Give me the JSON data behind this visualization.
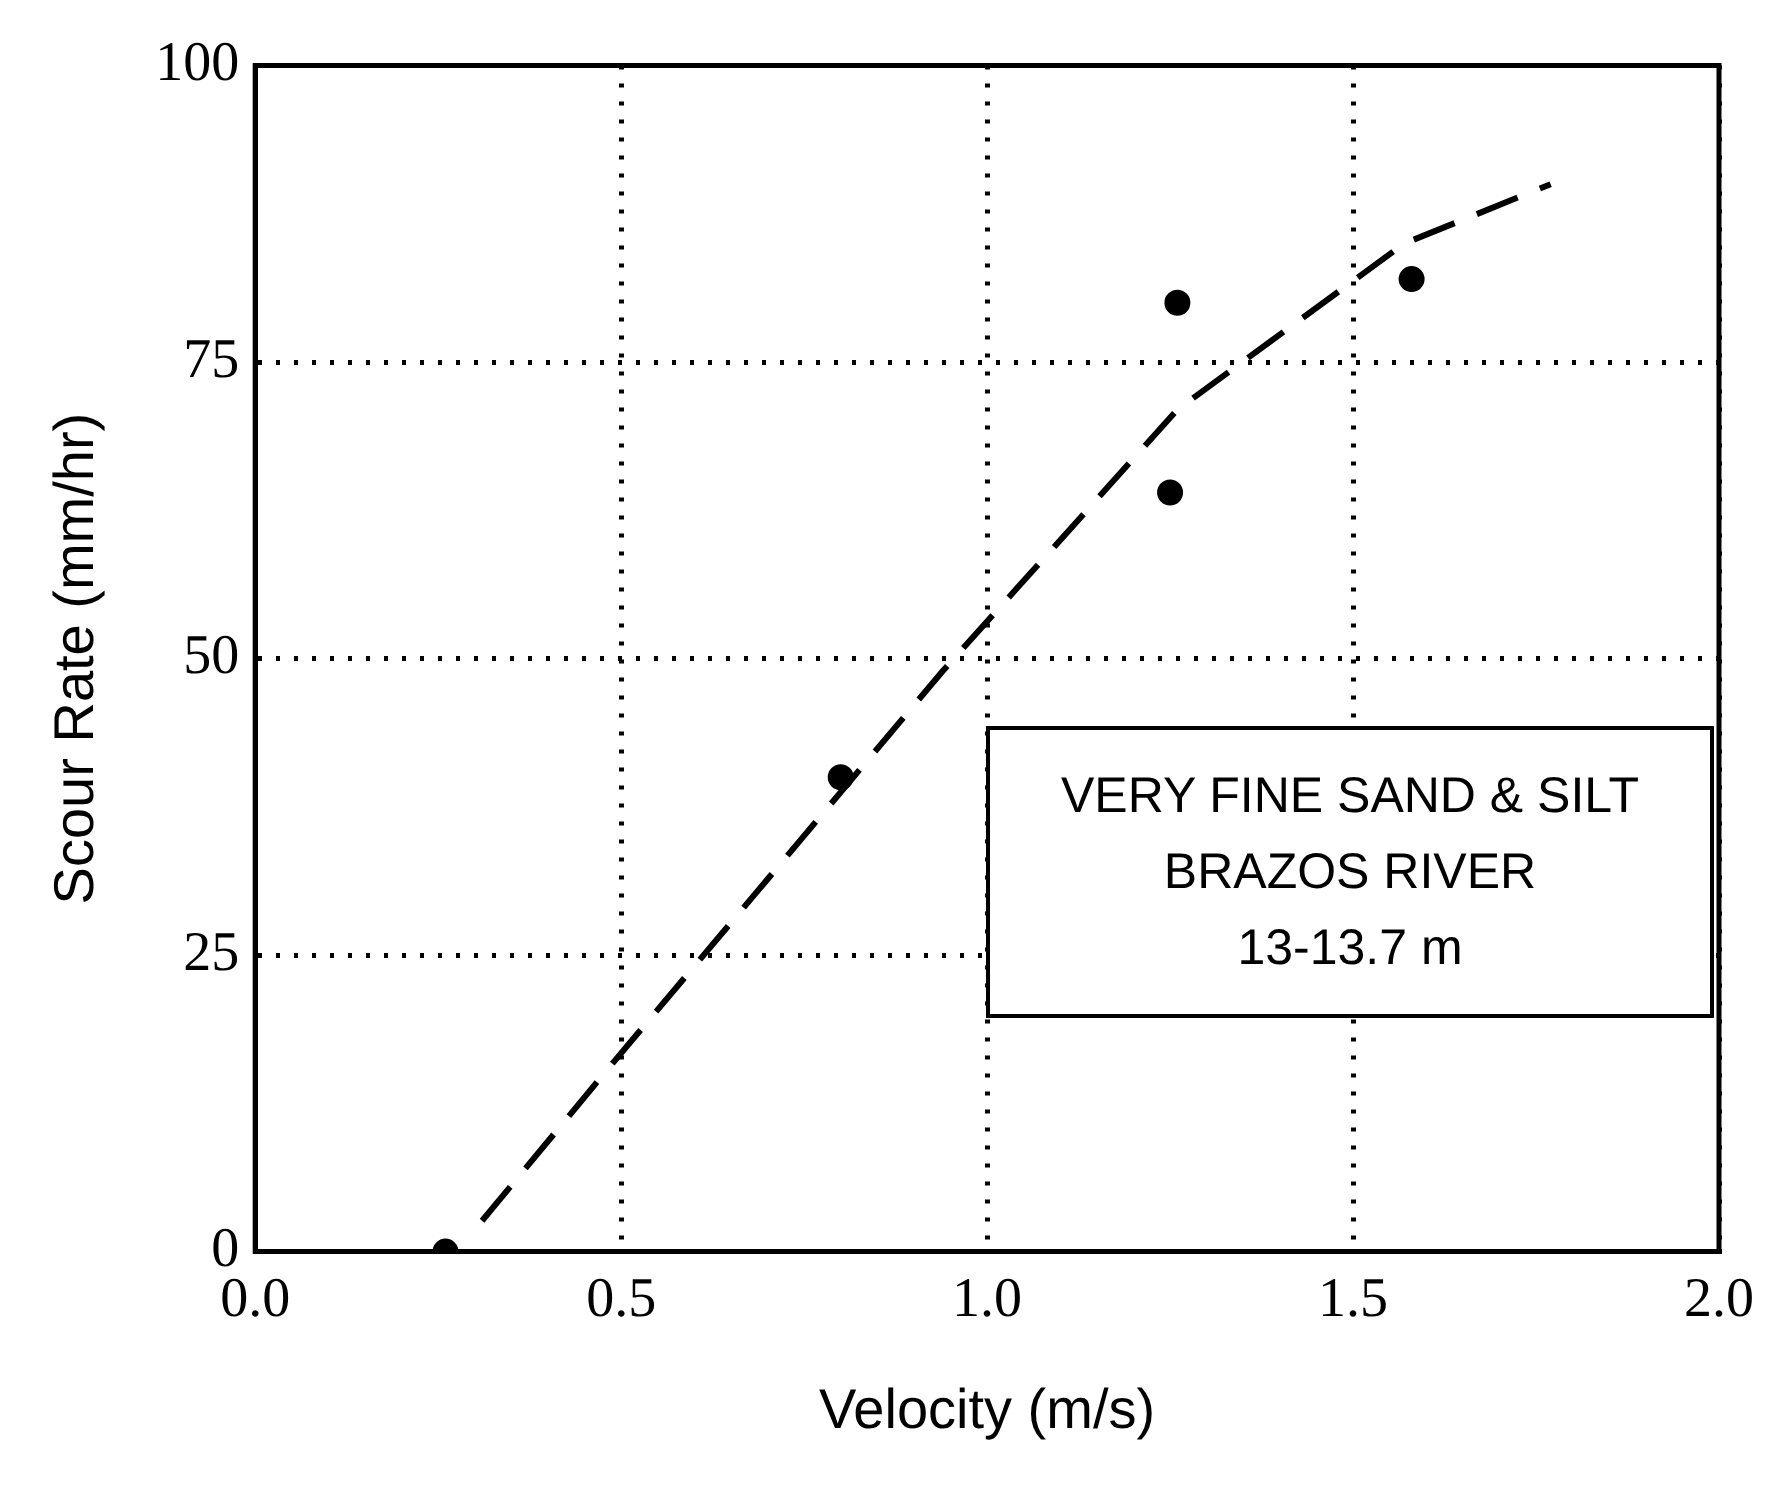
{
  "chart_data": {
    "type": "scatter",
    "xlabel": "Velocity (m/s)",
    "ylabel": "Scour Rate (mm/hr)",
    "annotations": [
      "VERY FINE SAND & SILT",
      "BRAZOS RIVER",
      "13-13.7 m"
    ],
    "xlim": [
      0,
      2
    ],
    "xticks": [
      {
        "value": 0,
        "label": "0.0"
      },
      {
        "value": 0.5,
        "label": "0.5"
      },
      {
        "value": 1,
        "label": "1.0"
      },
      {
        "value": 1.5,
        "label": "1.5"
      },
      {
        "value": 2,
        "label": "2.0"
      }
    ],
    "ylim": [
      0,
      100
    ],
    "yticks": [
      0,
      25,
      50,
      75,
      100
    ],
    "grid": true,
    "legend": false,
    "series": [
      {
        "color": "#000000",
        "marker": "circle",
        "x": [
          0.26,
          0.8,
          1.25,
          1.26,
          1.58
        ],
        "values": [
          0,
          40,
          64,
          80,
          82
        ]
      },
      {
        "type": "line",
        "color": "#000000",
        "marker": "none",
        "line_style": "dashed",
        "x": [
          0.31,
          0.49,
          0.94,
          1.26,
          1.57,
          1.77
        ],
        "values": [
          2.6,
          16,
          49,
          71,
          85,
          90
        ]
      }
    ]
  }
}
